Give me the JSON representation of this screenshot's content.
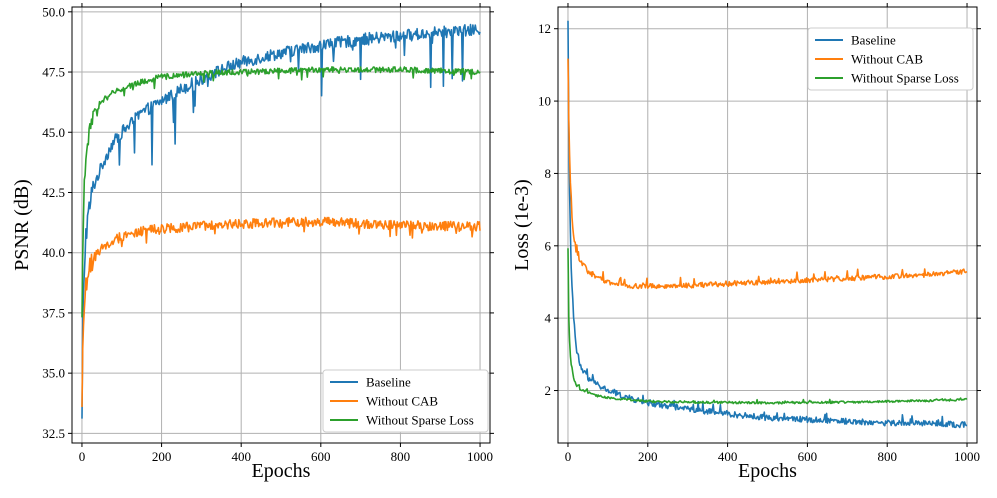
{
  "colors": {
    "baseline": "#1f77b4",
    "without_cab": "#ff7f0e",
    "without_sparse_loss": "#2ca02c"
  },
  "chart_data": [
    {
      "type": "line",
      "xlabel": "Epochs",
      "ylabel": "PSNR (dB)",
      "xlim": [
        -25,
        1025
      ],
      "ylim": [
        32.1,
        50.2
      ],
      "xticks": [
        0,
        200,
        400,
        600,
        800,
        1000
      ],
      "xtick_labels": [
        "0",
        "200",
        "400",
        "600",
        "800",
        "1000"
      ],
      "yticks": [
        32.5,
        35.0,
        37.5,
        40.0,
        42.5,
        45.0,
        47.5,
        50.0
      ],
      "ytick_labels": [
        "32.5",
        "35.0",
        "37.5",
        "40.0",
        "42.5",
        "45.0",
        "47.5",
        "50.0"
      ],
      "grid": true,
      "legend_position": "bottom-right",
      "series": [
        {
          "name": "Baseline",
          "color_key": "baseline",
          "x": [
            0,
            2,
            5,
            10,
            20,
            30,
            50,
            75,
            100,
            150,
            200,
            250,
            300,
            350,
            400,
            450,
            500,
            600,
            700,
            800,
            900,
            1000
          ],
          "y": [
            32.9,
            36.5,
            39.0,
            40.8,
            42.0,
            42.8,
            43.6,
            44.5,
            45.0,
            45.8,
            46.3,
            46.8,
            47.2,
            47.6,
            47.9,
            48.1,
            48.3,
            48.6,
            48.85,
            49.0,
            49.15,
            49.25
          ],
          "noise": 0.25,
          "dips": 2.5
        },
        {
          "name": "Without CAB",
          "color_key": "without_cab",
          "x": [
            0,
            2,
            5,
            10,
            20,
            30,
            50,
            75,
            100,
            150,
            200,
            300,
            400,
            500,
            600,
            700,
            800,
            900,
            1000
          ],
          "y": [
            34.0,
            36.0,
            37.5,
            38.6,
            39.4,
            39.8,
            40.2,
            40.5,
            40.7,
            40.9,
            41.0,
            41.1,
            41.2,
            41.25,
            41.3,
            41.2,
            41.15,
            41.1,
            41.1
          ],
          "noise": 0.2,
          "dips": 0.6
        },
        {
          "name": "Without Sparse Loss",
          "color_key": "without_sparse_loss",
          "x": [
            0,
            2,
            5,
            10,
            20,
            30,
            50,
            75,
            100,
            150,
            200,
            300,
            400,
            500,
            600,
            700,
            800,
            900,
            1000
          ],
          "y": [
            37.2,
            40.0,
            42.5,
            44.0,
            45.2,
            45.8,
            46.3,
            46.6,
            46.8,
            47.1,
            47.3,
            47.45,
            47.5,
            47.55,
            47.6,
            47.6,
            47.6,
            47.55,
            47.5
          ],
          "noise": 0.12,
          "dips": 0.4
        }
      ]
    },
    {
      "type": "line",
      "xlabel": "Epochs",
      "ylabel": "Loss (1e-3)",
      "xlim": [
        -25,
        1025
      ],
      "ylim": [
        0.55,
        12.6
      ],
      "xticks": [
        0,
        200,
        400,
        600,
        800,
        1000
      ],
      "xtick_labels": [
        "0",
        "200",
        "400",
        "600",
        "800",
        "1000"
      ],
      "yticks": [
        2,
        4,
        6,
        8,
        10,
        12
      ],
      "ytick_labels": [
        "2",
        "4",
        "6",
        "8",
        "10",
        "12"
      ],
      "grid": true,
      "legend_position": "top-right",
      "series": [
        {
          "name": "Baseline",
          "color_key": "baseline",
          "x": [
            0,
            2,
            5,
            10,
            15,
            20,
            30,
            40,
            50,
            75,
            100,
            150,
            200,
            300,
            400,
            500,
            600,
            700,
            800,
            900,
            1000
          ],
          "y": [
            12.1,
            9.0,
            6.5,
            4.8,
            3.8,
            3.2,
            2.7,
            2.5,
            2.35,
            2.15,
            2.0,
            1.8,
            1.65,
            1.5,
            1.35,
            1.25,
            1.2,
            1.15,
            1.1,
            1.1,
            1.05
          ],
          "noise": 0.08,
          "dips": 0.25
        },
        {
          "name": "Without CAB",
          "color_key": "without_cab",
          "x": [
            0,
            2,
            5,
            10,
            15,
            20,
            30,
            50,
            75,
            100,
            150,
            200,
            300,
            400,
            500,
            600,
            700,
            800,
            900,
            1000
          ],
          "y": [
            11.1,
            9.5,
            8.0,
            6.8,
            6.2,
            5.9,
            5.6,
            5.3,
            5.1,
            5.0,
            4.9,
            4.88,
            4.9,
            4.95,
            5.0,
            5.05,
            5.1,
            5.15,
            5.2,
            5.3
          ],
          "noise": 0.07,
          "dips": 0.25
        },
        {
          "name": "Without Sparse Loss",
          "color_key": "without_sparse_loss",
          "x": [
            0,
            2,
            5,
            10,
            15,
            20,
            30,
            50,
            75,
            100,
            150,
            200,
            300,
            400,
            500,
            600,
            700,
            800,
            900,
            1000
          ],
          "y": [
            5.9,
            4.0,
            3.0,
            2.6,
            2.35,
            2.2,
            2.05,
            1.95,
            1.85,
            1.8,
            1.75,
            1.7,
            1.68,
            1.67,
            1.66,
            1.67,
            1.68,
            1.7,
            1.72,
            1.75
          ],
          "noise": 0.03,
          "dips": 0.08
        }
      ]
    }
  ]
}
